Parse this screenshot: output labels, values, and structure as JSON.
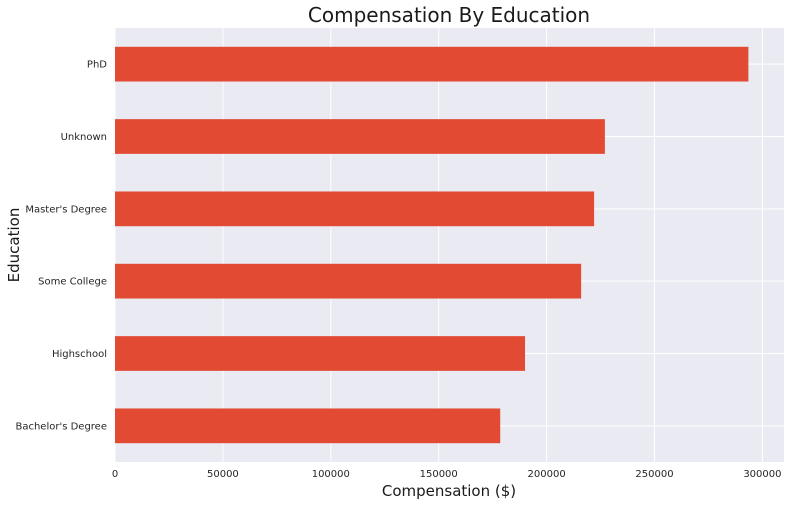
{
  "chart_data": {
    "type": "bar",
    "orientation": "horizontal",
    "title": "Compensation By Education",
    "xlabel": "Compensation ($)",
    "ylabel": "Education",
    "categories": [
      "PhD",
      "Unknown",
      "Master's Degree",
      "Some College",
      "Highschool",
      "Bachelor's Degree"
    ],
    "values": [
      293500,
      227000,
      222000,
      216000,
      190000,
      178500
    ],
    "xlim": [
      0,
      310000
    ],
    "xticks": [
      0,
      50000,
      100000,
      150000,
      200000,
      250000,
      300000
    ],
    "xtick_labels": [
      "0",
      "50000",
      "100000",
      "150000",
      "200000",
      "250000",
      "300000"
    ],
    "grid": true,
    "legend": "none",
    "colors": {
      "bar": "#e24a33",
      "plot_background": "#eaeaf2",
      "grid": "#ffffff"
    }
  }
}
